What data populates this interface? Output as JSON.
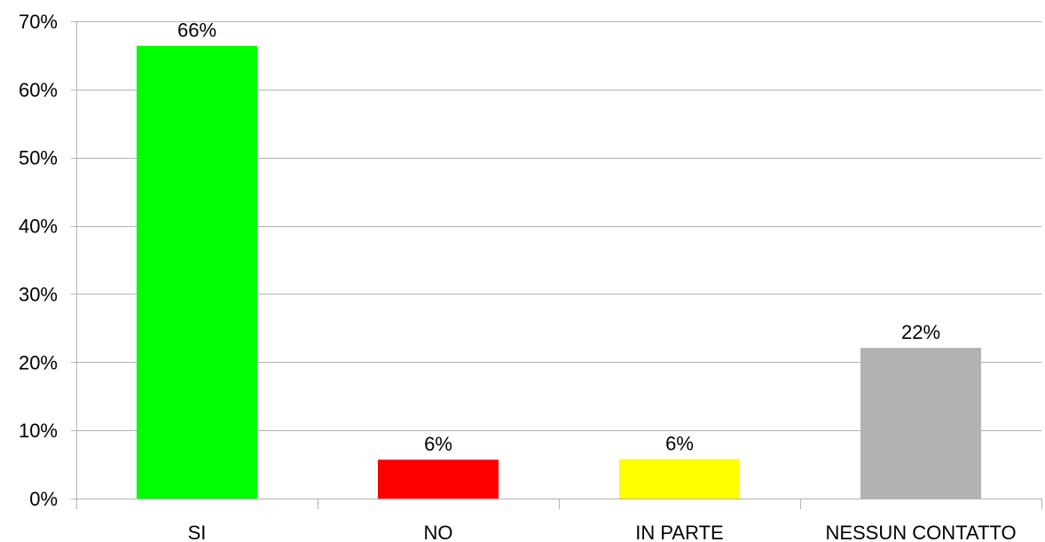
{
  "chart_data": {
    "type": "bar",
    "categories": [
      "SI",
      "NO",
      "IN PARTE",
      "NESSUN CONTATTO"
    ],
    "values": [
      66.4,
      5.7,
      5.8,
      22.1
    ],
    "data_labels": [
      "66%",
      "6%",
      "6%",
      "22%"
    ],
    "colors": [
      "#00ff00",
      "#ff0000",
      "#ffff00",
      "#b2b2b2"
    ],
    "ylim": [
      0,
      70
    ],
    "yticks": [
      0,
      10,
      20,
      30,
      40,
      50,
      60,
      70
    ],
    "ytick_labels": [
      "0%",
      "10%",
      "20%",
      "30%",
      "40%",
      "50%",
      "60%",
      "70%"
    ],
    "grid": true,
    "legend": "none",
    "title": "",
    "xlabel": "",
    "ylabel": ""
  }
}
